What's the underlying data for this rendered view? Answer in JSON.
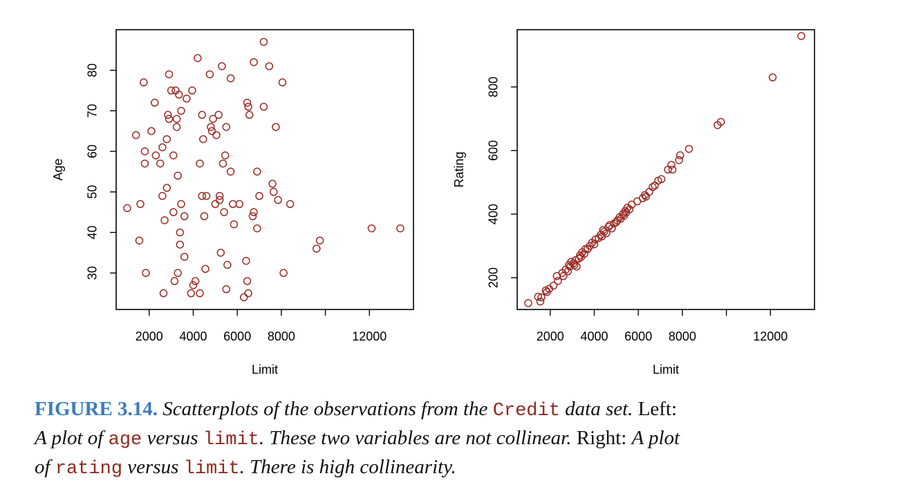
{
  "chart_data": [
    {
      "type": "scatter",
      "xlabel": "Limit",
      "ylabel": "Age",
      "xlim": [
        500,
        14000
      ],
      "ylim": [
        21,
        90
      ],
      "xticks": [
        2000,
        4000,
        6000,
        8000,
        10000,
        12000
      ],
      "xtick_labels": [
        "2000",
        "4000",
        "6000",
        "8000",
        "",
        "12000"
      ],
      "yticks": [
        30,
        40,
        50,
        60,
        70,
        80
      ],
      "yticks_labels": [
        "30",
        "40",
        "50",
        "60",
        "70",
        "80"
      ],
      "point_color": "#9b2c26",
      "points": [
        [
          1000,
          46
        ],
        [
          1400,
          64
        ],
        [
          1550,
          38
        ],
        [
          1600,
          47
        ],
        [
          1750,
          77
        ],
        [
          1800,
          60
        ],
        [
          1800,
          57
        ],
        [
          1850,
          30
        ],
        [
          2100,
          65
        ],
        [
          2250,
          72
        ],
        [
          2300,
          59
        ],
        [
          2500,
          57
        ],
        [
          2600,
          61
        ],
        [
          2600,
          49
        ],
        [
          2650,
          25
        ],
        [
          2700,
          43
        ],
        [
          2800,
          51
        ],
        [
          2800,
          63
        ],
        [
          2850,
          69
        ],
        [
          2900,
          68
        ],
        [
          2900,
          79
        ],
        [
          3000,
          75
        ],
        [
          3100,
          59
        ],
        [
          3100,
          45
        ],
        [
          3150,
          28
        ],
        [
          3200,
          75
        ],
        [
          3250,
          68
        ],
        [
          3250,
          66
        ],
        [
          3300,
          54
        ],
        [
          3300,
          30
        ],
        [
          3350,
          74
        ],
        [
          3400,
          37
        ],
        [
          3400,
          40
        ],
        [
          3450,
          70
        ],
        [
          3450,
          47
        ],
        [
          3600,
          44
        ],
        [
          3600,
          34
        ],
        [
          3700,
          73
        ],
        [
          3900,
          25
        ],
        [
          3950,
          75
        ],
        [
          4000,
          27
        ],
        [
          4100,
          28
        ],
        [
          4200,
          83
        ],
        [
          4300,
          57
        ],
        [
          4300,
          25
        ],
        [
          4400,
          69
        ],
        [
          4400,
          49
        ],
        [
          4450,
          63
        ],
        [
          4500,
          44
        ],
        [
          4550,
          31
        ],
        [
          4600,
          49
        ],
        [
          4750,
          79
        ],
        [
          4800,
          66
        ],
        [
          4850,
          65
        ],
        [
          4900,
          68
        ],
        [
          5000,
          47
        ],
        [
          5050,
          64
        ],
        [
          5150,
          69
        ],
        [
          5200,
          49
        ],
        [
          5200,
          48
        ],
        [
          5250,
          35
        ],
        [
          5300,
          81
        ],
        [
          5350,
          57
        ],
        [
          5400,
          45
        ],
        [
          5450,
          59
        ],
        [
          5500,
          66
        ],
        [
          5500,
          26
        ],
        [
          5550,
          32
        ],
        [
          5700,
          78
        ],
        [
          5700,
          55
        ],
        [
          5800,
          47
        ],
        [
          5850,
          42
        ],
        [
          6100,
          47
        ],
        [
          6300,
          24
        ],
        [
          6400,
          33
        ],
        [
          6450,
          72
        ],
        [
          6450,
          28
        ],
        [
          6500,
          71
        ],
        [
          6500,
          25
        ],
        [
          6550,
          69
        ],
        [
          6700,
          44
        ],
        [
          6750,
          82
        ],
        [
          6750,
          45
        ],
        [
          6900,
          55
        ],
        [
          6900,
          41
        ],
        [
          7000,
          49
        ],
        [
          7200,
          71
        ],
        [
          7200,
          87
        ],
        [
          7450,
          81
        ],
        [
          7600,
          52
        ],
        [
          7650,
          50
        ],
        [
          7750,
          66
        ],
        [
          7850,
          48
        ],
        [
          8050,
          77
        ],
        [
          8100,
          30
        ],
        [
          8400,
          47
        ],
        [
          9600,
          36
        ],
        [
          9750,
          38
        ],
        [
          12100,
          41
        ],
        [
          13400,
          41
        ]
      ]
    },
    {
      "type": "scatter",
      "xlabel": "Limit",
      "ylabel": "Rating",
      "xlim": [
        500,
        14000
      ],
      "ylim": [
        100,
        980
      ],
      "xticks": [
        2000,
        4000,
        6000,
        8000,
        10000,
        12000
      ],
      "xtick_labels": [
        "2000",
        "4000",
        "6000",
        "8000",
        "",
        "12000"
      ],
      "yticks": [
        200,
        400,
        600,
        800
      ],
      "yticks_labels": [
        "200",
        "400",
        "600",
        "800"
      ],
      "point_color": "#9b2c26",
      "points": [
        [
          1000,
          120
        ],
        [
          1450,
          140
        ],
        [
          1550,
          125
        ],
        [
          1600,
          138
        ],
        [
          1800,
          160
        ],
        [
          1850,
          155
        ],
        [
          1950,
          165
        ],
        [
          2150,
          175
        ],
        [
          2300,
          205
        ],
        [
          2350,
          190
        ],
        [
          2550,
          215
        ],
        [
          2600,
          205
        ],
        [
          2700,
          225
        ],
        [
          2800,
          220
        ],
        [
          2850,
          240
        ],
        [
          2900,
          235
        ],
        [
          2950,
          250
        ],
        [
          3050,
          245
        ],
        [
          3100,
          240
        ],
        [
          3150,
          255
        ],
        [
          3200,
          235
        ],
        [
          3300,
          260
        ],
        [
          3350,
          270
        ],
        [
          3400,
          265
        ],
        [
          3450,
          280
        ],
        [
          3550,
          275
        ],
        [
          3600,
          290
        ],
        [
          3700,
          290
        ],
        [
          3800,
          300
        ],
        [
          3900,
          310
        ],
        [
          4000,
          305
        ],
        [
          4050,
          320
        ],
        [
          4200,
          325
        ],
        [
          4300,
          335
        ],
        [
          4350,
          330
        ],
        [
          4400,
          350
        ],
        [
          4450,
          345
        ],
        [
          4550,
          340
        ],
        [
          4650,
          360
        ],
        [
          4700,
          365
        ],
        [
          4800,
          355
        ],
        [
          4900,
          370
        ],
        [
          5000,
          375
        ],
        [
          5050,
          380
        ],
        [
          5150,
          390
        ],
        [
          5200,
          385
        ],
        [
          5300,
          400
        ],
        [
          5350,
          395
        ],
        [
          5400,
          410
        ],
        [
          5450,
          405
        ],
        [
          5500,
          420
        ],
        [
          5600,
          415
        ],
        [
          5700,
          430
        ],
        [
          5950,
          440
        ],
        [
          6200,
          450
        ],
        [
          6300,
          460
        ],
        [
          6350,
          455
        ],
        [
          6500,
          470
        ],
        [
          6650,
          485
        ],
        [
          6750,
          490
        ],
        [
          6900,
          505
        ],
        [
          7050,
          510
        ],
        [
          7350,
          540
        ],
        [
          7500,
          555
        ],
        [
          7550,
          540
        ],
        [
          7850,
          570
        ],
        [
          7900,
          585
        ],
        [
          8300,
          605
        ],
        [
          9600,
          680
        ],
        [
          9750,
          690
        ],
        [
          12100,
          830
        ],
        [
          13400,
          960
        ]
      ]
    }
  ],
  "caption": {
    "figure_number": "FIGURE 3.14.",
    "part1": "Scatterplots of the observations from the",
    "code_credit": "Credit",
    "part2": "data set.",
    "left_label": "Left:",
    "part3": "A plot of",
    "code_age": "age",
    "part4": "versus",
    "code_limit_1": "limit",
    "part5": ". These two variables are not collinear.",
    "right_label": "Right:",
    "part6": "A plot",
    "part7": "of",
    "code_rating": "rating",
    "part8": "versus",
    "code_limit_2": "limit",
    "part9": ". There is high collinearity."
  }
}
